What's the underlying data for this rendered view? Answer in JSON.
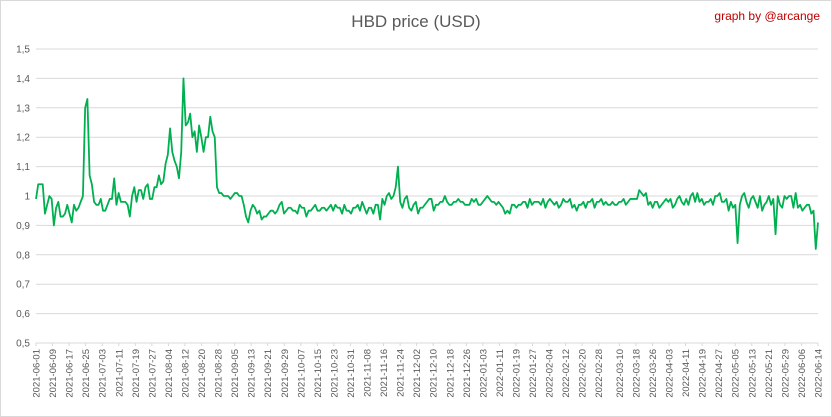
{
  "chart_data": {
    "type": "line",
    "title": "HBD price (USD)",
    "credit": "graph by @arcange",
    "xlabel": "",
    "ylabel": "",
    "ylim": [
      0.5,
      1.5
    ],
    "y_ticks": [
      "0,5",
      "0,6",
      "0,7",
      "0,8",
      "0,9",
      "1",
      "1,1",
      "1,2",
      "1,3",
      "1,4",
      "1,5"
    ],
    "grid": "horizontal",
    "legend": "none",
    "line_color": "#00b050",
    "x_start": "2021-06-01",
    "x_end": "2022-06-14",
    "x_ticks": [
      "2021-06-01",
      "2021-06-09",
      "2021-06-17",
      "2021-06-25",
      "2021-07-03",
      "2021-07-11",
      "2021-07-19",
      "2021-07-27",
      "2021-08-04",
      "2021-08-12",
      "2021-08-20",
      "2021-08-28",
      "2021-09-05",
      "2021-09-13",
      "2021-09-21",
      "2021-09-29",
      "2021-10-07",
      "2021-10-15",
      "2021-10-23",
      "2021-10-31",
      "2021-11-08",
      "2021-11-16",
      "2021-11-24",
      "2021-12-02",
      "2021-12-10",
      "2021-12-18",
      "2021-12-26",
      "2022-01-03",
      "2022-01-11",
      "2022-01-19",
      "2022-01-27",
      "2022-02-04",
      "2022-02-12",
      "2022-02-20",
      "2022-02-28",
      "2022-03-10",
      "2022-03-18",
      "2022-03-26",
      "2022-04-03",
      "2022-04-11",
      "2022-04-19",
      "2022-04-27",
      "2022-05-05",
      "2022-05-13",
      "2022-05-21",
      "2022-05-29",
      "2022-06-06",
      "2022-06-14"
    ],
    "series": [
      {
        "values": [
          0.99,
          1.04,
          1.04,
          1.04,
          0.94,
          0.97,
          1.0,
          0.99,
          0.9,
          0.96,
          0.98,
          0.93,
          0.93,
          0.94,
          0.97,
          0.94,
          0.91,
          0.97,
          0.95,
          0.96,
          0.98,
          1.0,
          1.3,
          1.33,
          1.07,
          1.04,
          0.98,
          0.97,
          0.97,
          0.99,
          0.95,
          0.95,
          0.97,
          0.99,
          0.99,
          1.06,
          0.97,
          1.01,
          0.98,
          0.98,
          0.98,
          0.97,
          0.93,
          1.0,
          1.03,
          0.98,
          1.02,
          1.02,
          0.99,
          1.03,
          1.04,
          0.99,
          0.99,
          1.03,
          1.03,
          1.07,
          1.04,
          1.05,
          1.11,
          1.14,
          1.23,
          1.15,
          1.12,
          1.1,
          1.06,
          1.15,
          1.4,
          1.24,
          1.25,
          1.28,
          1.2,
          1.22,
          1.15,
          1.24,
          1.2,
          1.15,
          1.2,
          1.2,
          1.27,
          1.22,
          1.2,
          1.03,
          1.01,
          1.01,
          1.0,
          1.0,
          1.0,
          0.99,
          1.0,
          1.01,
          1.01,
          1.0,
          1.0,
          0.97,
          0.93,
          0.91,
          0.95,
          0.97,
          0.96,
          0.94,
          0.95,
          0.92,
          0.93,
          0.93,
          0.94,
          0.95,
          0.95,
          0.94,
          0.95,
          0.97,
          0.98,
          0.94,
          0.95,
          0.96,
          0.96,
          0.95,
          0.95,
          0.94,
          0.97,
          0.96,
          0.96,
          0.93,
          0.95,
          0.95,
          0.96,
          0.97,
          0.95,
          0.95,
          0.96,
          0.96,
          0.95,
          0.96,
          0.97,
          0.95,
          0.97,
          0.96,
          0.96,
          0.94,
          0.97,
          0.95,
          0.95,
          0.94,
          0.96,
          0.96,
          0.97,
          0.95,
          0.98,
          0.96,
          0.94,
          0.96,
          0.96,
          0.94,
          0.97,
          0.97,
          0.92,
          0.99,
          0.97,
          1.0,
          1.01,
          0.99,
          1.0,
          1.03,
          1.1,
          0.98,
          0.96,
          0.99,
          1.0,
          0.96,
          0.95,
          0.97,
          0.98,
          0.94,
          0.96,
          0.96,
          0.97,
          0.98,
          0.99,
          0.99,
          0.95,
          0.97,
          0.97,
          0.98,
          0.98,
          1.0,
          0.98,
          0.97,
          0.97,
          0.98,
          0.98,
          0.99,
          0.98,
          0.98,
          0.97,
          0.97,
          0.97,
          0.99,
          0.98,
          0.99,
          0.97,
          0.97,
          0.98,
          0.99,
          1.0,
          0.99,
          0.98,
          0.98,
          0.97,
          0.98,
          0.97,
          0.96,
          0.94,
          0.95,
          0.94,
          0.97,
          0.97,
          0.96,
          0.97,
          0.97,
          0.98,
          0.98,
          0.96,
          0.99,
          0.97,
          0.98,
          0.98,
          0.98,
          0.97,
          0.99,
          0.96,
          0.98,
          0.99,
          0.98,
          0.97,
          0.98,
          0.96,
          0.97,
          0.99,
          0.98,
          0.98,
          0.99,
          0.96,
          0.97,
          0.95,
          0.97,
          0.97,
          0.98,
          0.96,
          0.98,
          0.98,
          0.99,
          0.96,
          0.98,
          0.98,
          0.99,
          0.97,
          0.98,
          0.97,
          0.97,
          0.98,
          0.97,
          0.97,
          0.98,
          0.98,
          0.99,
          0.97,
          0.98,
          0.99,
          0.99,
          0.99,
          0.99,
          1.02,
          1.01,
          1.0,
          1.01,
          0.97,
          0.98,
          0.96,
          0.98,
          0.98,
          0.96,
          0.97,
          0.98,
          0.99,
          0.98,
          0.99,
          0.96,
          0.97,
          0.99,
          1.0,
          0.98,
          0.97,
          0.99,
          0.97,
          1.0,
          1.01,
          0.98,
          1.01,
          0.98,
          0.99,
          0.97,
          0.98,
          0.98,
          0.99,
          0.97,
          1.0,
          1.0,
          1.01,
          0.98,
          0.98,
          0.99,
          0.95,
          0.98,
          0.96,
          0.97,
          0.84,
          0.97,
          1.0,
          1.01,
          0.98,
          0.96,
          0.99,
          1.0,
          0.98,
          0.96,
          1.0,
          0.95,
          0.97,
          0.98,
          1.0,
          0.97,
          0.99,
          0.87,
          1.0,
          0.97,
          0.96,
          1.0,
          0.99,
          1.0,
          1.0,
          0.96,
          1.01,
          0.96,
          0.97,
          0.95,
          0.96,
          0.97,
          0.97,
          0.94,
          0.95,
          0.82,
          0.91
        ]
      }
    ]
  }
}
